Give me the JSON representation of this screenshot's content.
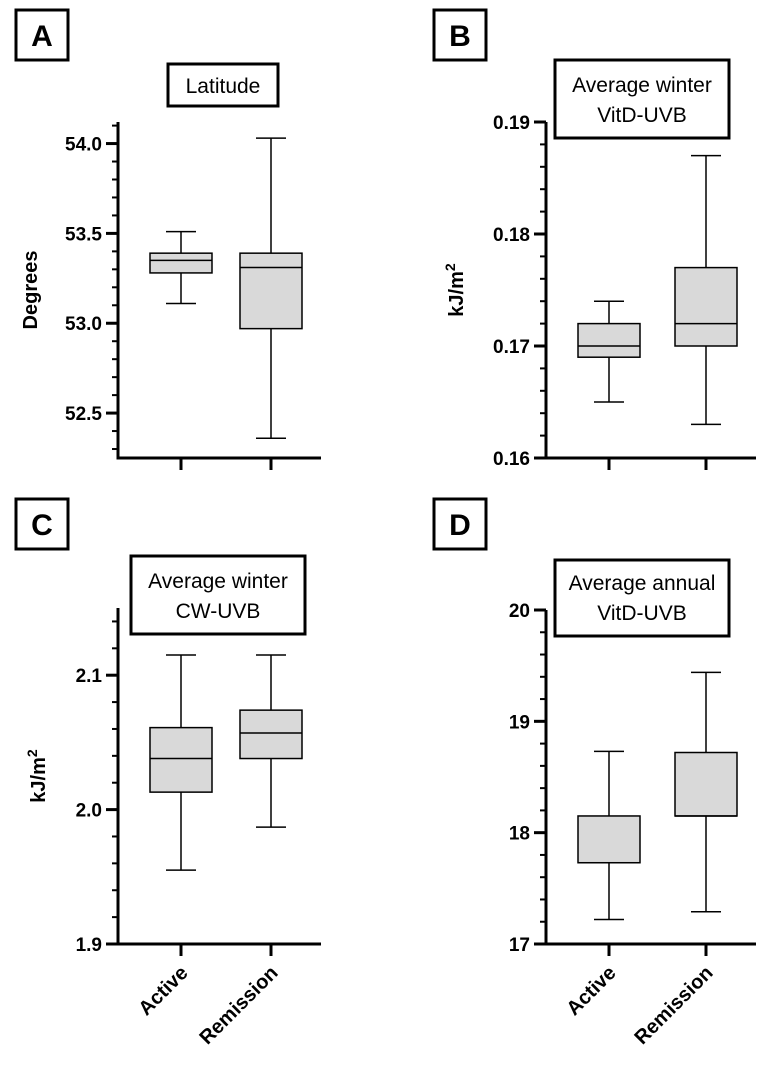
{
  "chart_data": [
    {
      "panel": "A",
      "type": "box",
      "title_lines": [
        "Latitude"
      ],
      "ylabel": "Degrees",
      "ylabel_sup": "",
      "ylim": [
        52.25,
        54.12
      ],
      "yticks": [
        52.5,
        53.0,
        53.5,
        54.0
      ],
      "ytick_labels": [
        "52.5",
        "53.0",
        "53.5",
        "54.0"
      ],
      "minor_step": 0.1,
      "categories": [
        "Active",
        "Remission"
      ],
      "show_categories": false,
      "boxes": [
        {
          "category": "Active",
          "min": 53.11,
          "q1": 53.28,
          "median": 53.35,
          "q3": 53.39,
          "max": 53.51
        },
        {
          "category": "Remission",
          "min": 52.36,
          "q1": 52.97,
          "median": 53.31,
          "q3": 53.39,
          "max": 54.03
        }
      ]
    },
    {
      "panel": "B",
      "type": "box",
      "title_lines": [
        "Average winter",
        "VitD-UVB"
      ],
      "ylabel": "kJ/m",
      "ylabel_sup": "2",
      "ylim": [
        0.16,
        0.19
      ],
      "yticks": [
        0.16,
        0.17,
        0.18,
        0.19
      ],
      "ytick_labels": [
        "0.16",
        "0.17",
        "0.18",
        "0.19"
      ],
      "minor_step": 0.002,
      "categories": [
        "Active",
        "Remission"
      ],
      "show_categories": false,
      "boxes": [
        {
          "category": "Active",
          "min": 0.165,
          "q1": 0.169,
          "median": 0.17,
          "q3": 0.172,
          "max": 0.174
        },
        {
          "category": "Remission",
          "min": 0.163,
          "q1": 0.17,
          "median": 0.172,
          "q3": 0.177,
          "max": 0.187
        }
      ]
    },
    {
      "panel": "C",
      "type": "box",
      "title_lines": [
        "Average winter",
        "CW-UVB"
      ],
      "ylabel": "kJ/m",
      "ylabel_sup": "2",
      "ylim": [
        1.9,
        2.15
      ],
      "yticks": [
        1.9,
        2.0,
        2.1
      ],
      "ytick_labels": [
        "1.9",
        "2.0",
        "2.1"
      ],
      "minor_step": 0.02,
      "categories": [
        "Active",
        "Remission"
      ],
      "show_categories": true,
      "boxes": [
        {
          "category": "Active",
          "min": 1.955,
          "q1": 2.013,
          "median": 2.038,
          "q3": 2.061,
          "max": 2.115
        },
        {
          "category": "Remission",
          "min": 1.987,
          "q1": 2.038,
          "median": 2.057,
          "q3": 2.074,
          "max": 2.115
        }
      ]
    },
    {
      "panel": "D",
      "type": "box",
      "title_lines": [
        "Average annual",
        "VitD-UVB"
      ],
      "ylabel": "",
      "ylabel_sup": "",
      "ylim": [
        17,
        20
      ],
      "yticks": [
        17,
        18,
        19,
        20
      ],
      "ytick_labels": [
        "17",
        "18",
        "19",
        "20"
      ],
      "minor_step": 0.2,
      "categories": [
        "Active",
        "Remission"
      ],
      "show_categories": true,
      "boxes": [
        {
          "category": "Active",
          "min": 17.22,
          "q1": 17.73,
          "median": 17.73,
          "q3": 18.15,
          "max": 18.73
        },
        {
          "category": "Remission",
          "min": 17.29,
          "q1": 18.15,
          "median": 18.15,
          "q3": 18.72,
          "max": 19.44
        }
      ]
    }
  ],
  "style": {
    "box_fill": "#d9d9d9",
    "line_color": "#000000"
  }
}
